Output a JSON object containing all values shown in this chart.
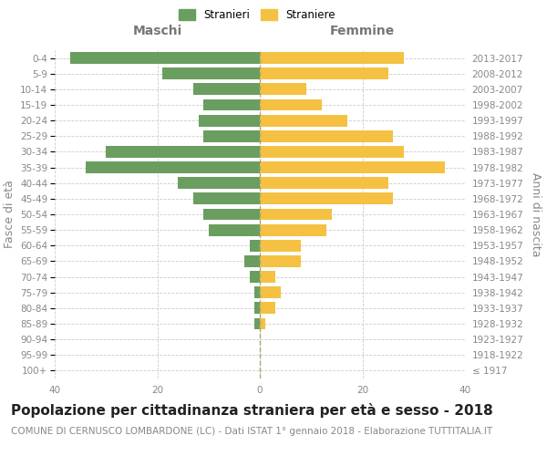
{
  "age_groups": [
    "100+",
    "95-99",
    "90-94",
    "85-89",
    "80-84",
    "75-79",
    "70-74",
    "65-69",
    "60-64",
    "55-59",
    "50-54",
    "45-49",
    "40-44",
    "35-39",
    "30-34",
    "25-29",
    "20-24",
    "15-19",
    "10-14",
    "5-9",
    "0-4"
  ],
  "birth_years": [
    "≤ 1917",
    "1918-1922",
    "1923-1927",
    "1928-1932",
    "1933-1937",
    "1938-1942",
    "1943-1947",
    "1948-1952",
    "1953-1957",
    "1958-1962",
    "1963-1967",
    "1968-1972",
    "1973-1977",
    "1978-1982",
    "1983-1987",
    "1988-1992",
    "1993-1997",
    "1998-2002",
    "2003-2007",
    "2008-2012",
    "2013-2017"
  ],
  "males": [
    0,
    0,
    0,
    1,
    1,
    1,
    2,
    3,
    2,
    10,
    11,
    13,
    16,
    34,
    30,
    11,
    12,
    11,
    13,
    19,
    37
  ],
  "females": [
    0,
    0,
    0,
    1,
    3,
    4,
    3,
    8,
    8,
    13,
    14,
    26,
    25,
    36,
    28,
    26,
    17,
    12,
    9,
    25,
    28
  ],
  "male_color": "#6a9e5f",
  "female_color": "#f5c142",
  "background_color": "#ffffff",
  "grid_color": "#cccccc",
  "title": "Popolazione per cittadinanza straniera per età e sesso - 2018",
  "subtitle": "COMUNE DI CERNUSCO LOMBARDONE (LC) - Dati ISTAT 1° gennaio 2018 - Elaborazione TUTTITALIA.IT",
  "xlabel_left": "Maschi",
  "xlabel_right": "Femmine",
  "ylabel_left": "Fasce di età",
  "ylabel_right": "Anni di nascita",
  "legend_male": "Stranieri",
  "legend_female": "Straniere",
  "xlim": 40,
  "title_fontsize": 11,
  "subtitle_fontsize": 7.5,
  "tick_fontsize": 7.5,
  "label_fontsize": 9
}
